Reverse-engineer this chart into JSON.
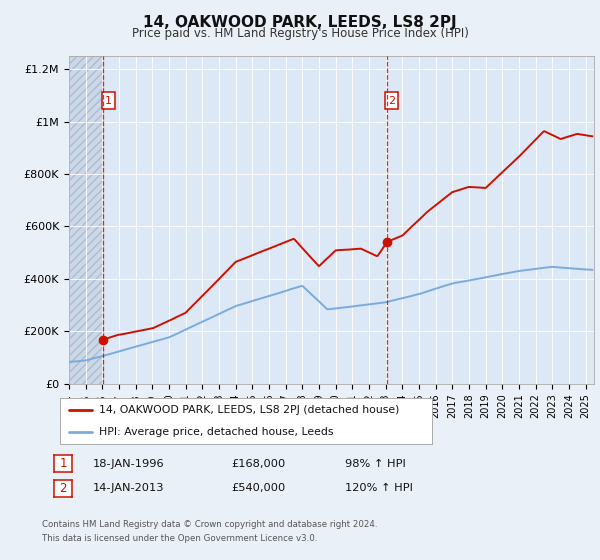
{
  "title": "14, OAKWOOD PARK, LEEDS, LS8 2PJ",
  "subtitle": "Price paid vs. HM Land Registry's House Price Index (HPI)",
  "bg_color": "#eaf0f8",
  "plot_bg_color": "#dce8f5",
  "hatch_color": "#ccd8e8",
  "xmin": 1994.0,
  "xmax": 2025.5,
  "ymin": 0,
  "ymax": 1250000,
  "yticks": [
    0,
    200000,
    400000,
    600000,
    800000,
    1000000,
    1200000
  ],
  "ytick_labels": [
    "£0",
    "£200K",
    "£400K",
    "£600K",
    "£800K",
    "£1M",
    "£1.2M"
  ],
  "xticks": [
    1994,
    1995,
    1996,
    1997,
    1998,
    1999,
    2000,
    2001,
    2002,
    2003,
    2004,
    2005,
    2006,
    2007,
    2008,
    2009,
    2010,
    2011,
    2012,
    2013,
    2014,
    2015,
    2016,
    2017,
    2018,
    2019,
    2020,
    2021,
    2022,
    2023,
    2024,
    2025
  ],
  "sale1_x": 1996.05,
  "sale1_y": 168000,
  "sale1_label": "1",
  "sale1_date": "18-JAN-1996",
  "sale1_price": "£168,000",
  "sale1_hpi": "98% ↑ HPI",
  "sale2_x": 2013.05,
  "sale2_y": 540000,
  "sale2_label": "2",
  "sale2_date": "14-JAN-2013",
  "sale2_price": "£540,000",
  "sale2_hpi": "120% ↑ HPI",
  "legend_line1": "14, OAKWOOD PARK, LEEDS, LS8 2PJ (detached house)",
  "legend_line2": "HPI: Average price, detached house, Leeds",
  "footer1": "Contains HM Land Registry data © Crown copyright and database right 2024.",
  "footer2": "This data is licensed under the Open Government Licence v3.0.",
  "property_color": "#cc1100",
  "hpi_color": "#7aabdd",
  "property_lw": 1.4,
  "hpi_lw": 1.4
}
